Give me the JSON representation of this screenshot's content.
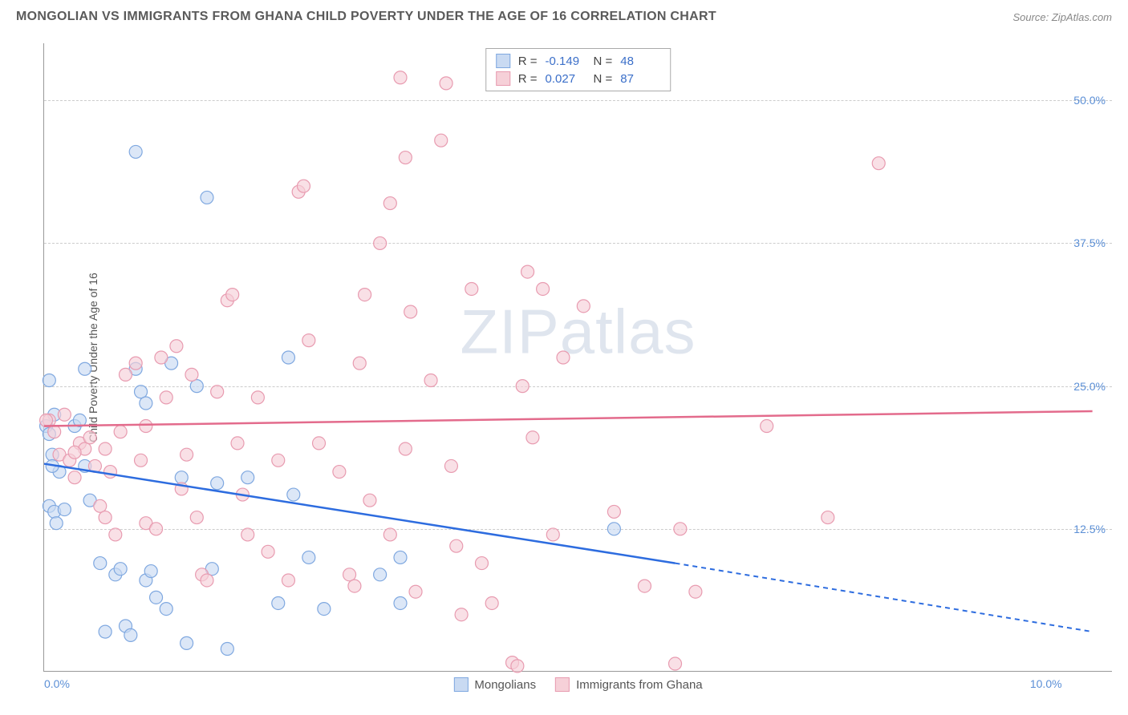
{
  "header": {
    "title": "MONGOLIAN VS IMMIGRANTS FROM GHANA CHILD POVERTY UNDER THE AGE OF 16 CORRELATION CHART",
    "source": "Source: ZipAtlas.com"
  },
  "chart": {
    "type": "scatter",
    "ylabel": "Child Poverty Under the Age of 16",
    "xlim": [
      0,
      10.5
    ],
    "ylim": [
      0,
      55
    ],
    "xticks": [
      {
        "v": 0,
        "l": "0.0%"
      },
      {
        "v": 10,
        "l": "10.0%"
      }
    ],
    "yticks": [
      {
        "v": 12.5,
        "l": "12.5%"
      },
      {
        "v": 25,
        "l": "25.0%"
      },
      {
        "v": 37.5,
        "l": "37.5%"
      },
      {
        "v": 50,
        "l": "50.0%"
      }
    ],
    "grid_color": "#cccccc",
    "axis_color": "#999999",
    "background_color": "#ffffff",
    "watermark": "ZIPatlas",
    "series": [
      {
        "name": "Mongolians",
        "color_fill": "#c9daf2",
        "color_stroke": "#7fa8e0",
        "line_color": "#2d6cdf",
        "marker_radius": 8,
        "marker_opacity": 0.65,
        "stats": {
          "R": "-0.149",
          "N": "48"
        },
        "trend": {
          "x1": 0,
          "y1": 18.2,
          "x2": 6.2,
          "y2": 9.5,
          "x2_dash": 10.3,
          "y2_dash": 3.5
        },
        "points": [
          [
            0.02,
            21.5
          ],
          [
            0.05,
            20.8
          ],
          [
            0.1,
            22.5
          ],
          [
            0.08,
            19.0
          ],
          [
            0.15,
            17.5
          ],
          [
            0.05,
            14.5
          ],
          [
            0.1,
            14.0
          ],
          [
            0.2,
            14.2
          ],
          [
            0.12,
            13.0
          ],
          [
            0.05,
            25.5
          ],
          [
            0.3,
            21.5
          ],
          [
            0.35,
            22.0
          ],
          [
            0.4,
            18.0
          ],
          [
            0.4,
            26.5
          ],
          [
            0.45,
            15.0
          ],
          [
            0.55,
            9.5
          ],
          [
            0.6,
            3.5
          ],
          [
            0.7,
            8.5
          ],
          [
            0.75,
            9.0
          ],
          [
            0.8,
            4.0
          ],
          [
            0.85,
            3.2
          ],
          [
            0.9,
            26.5
          ],
          [
            0.95,
            24.5
          ],
          [
            1.0,
            23.5
          ],
          [
            1.0,
            8.0
          ],
          [
            1.05,
            8.8
          ],
          [
            1.1,
            6.5
          ],
          [
            1.2,
            5.5
          ],
          [
            1.25,
            27.0
          ],
          [
            1.35,
            17.0
          ],
          [
            1.4,
            2.5
          ],
          [
            1.5,
            25.0
          ],
          [
            1.6,
            41.5
          ],
          [
            1.65,
            9.0
          ],
          [
            1.7,
            16.5
          ],
          [
            1.8,
            2.0
          ],
          [
            2.0,
            17.0
          ],
          [
            2.3,
            6.0
          ],
          [
            2.4,
            27.5
          ],
          [
            2.45,
            15.5
          ],
          [
            2.6,
            10.0
          ],
          [
            2.75,
            5.5
          ],
          [
            3.3,
            8.5
          ],
          [
            3.5,
            10.0
          ],
          [
            3.5,
            6.0
          ],
          [
            5.6,
            12.5
          ],
          [
            0.9,
            45.5
          ],
          [
            0.08,
            18.0
          ]
        ]
      },
      {
        "name": "Immigrants from Ghana",
        "color_fill": "#f6d0d8",
        "color_stroke": "#e89bb0",
        "line_color": "#e36b8c",
        "marker_radius": 8,
        "marker_opacity": 0.65,
        "stats": {
          "R": "0.027",
          "N": "87"
        },
        "trend": {
          "x1": 0,
          "y1": 21.5,
          "x2": 10.3,
          "y2": 22.8
        },
        "points": [
          [
            0.05,
            22.0
          ],
          [
            0.1,
            21.0
          ],
          [
            0.15,
            19.0
          ],
          [
            0.2,
            22.5
          ],
          [
            0.25,
            18.5
          ],
          [
            0.3,
            17.0
          ],
          [
            0.35,
            20.0
          ],
          [
            0.4,
            19.5
          ],
          [
            0.5,
            18.0
          ],
          [
            0.55,
            14.5
          ],
          [
            0.6,
            13.5
          ],
          [
            0.65,
            17.5
          ],
          [
            0.7,
            12.0
          ],
          [
            0.75,
            21.0
          ],
          [
            0.8,
            26.0
          ],
          [
            0.9,
            27.0
          ],
          [
            0.95,
            18.5
          ],
          [
            1.0,
            13.0
          ],
          [
            1.1,
            12.5
          ],
          [
            1.15,
            27.5
          ],
          [
            1.2,
            24.0
          ],
          [
            1.3,
            28.5
          ],
          [
            1.35,
            16.0
          ],
          [
            1.4,
            19.0
          ],
          [
            1.5,
            13.5
          ],
          [
            1.55,
            8.5
          ],
          [
            1.6,
            8.0
          ],
          [
            1.7,
            24.5
          ],
          [
            1.8,
            32.5
          ],
          [
            1.85,
            33.0
          ],
          [
            1.9,
            20.0
          ],
          [
            1.95,
            15.5
          ],
          [
            2.0,
            12.0
          ],
          [
            2.1,
            24.0
          ],
          [
            2.2,
            10.5
          ],
          [
            2.3,
            18.5
          ],
          [
            2.4,
            8.0
          ],
          [
            2.5,
            42.0
          ],
          [
            2.55,
            42.5
          ],
          [
            2.7,
            20.0
          ],
          [
            2.9,
            17.5
          ],
          [
            3.0,
            8.5
          ],
          [
            3.05,
            7.5
          ],
          [
            3.1,
            27.0
          ],
          [
            3.15,
            33.0
          ],
          [
            3.2,
            15.0
          ],
          [
            3.3,
            37.5
          ],
          [
            3.4,
            41.0
          ],
          [
            3.5,
            52.0
          ],
          [
            3.55,
            19.5
          ],
          [
            3.55,
            45.0
          ],
          [
            3.6,
            31.5
          ],
          [
            3.65,
            7.0
          ],
          [
            3.8,
            25.5
          ],
          [
            3.9,
            46.5
          ],
          [
            3.95,
            51.5
          ],
          [
            4.05,
            11.0
          ],
          [
            4.1,
            5.0
          ],
          [
            4.2,
            33.5
          ],
          [
            4.3,
            9.5
          ],
          [
            4.6,
            0.8
          ],
          [
            4.65,
            0.5
          ],
          [
            4.7,
            25.0
          ],
          [
            4.75,
            35.0
          ],
          [
            4.8,
            20.5
          ],
          [
            4.9,
            33.5
          ],
          [
            5.0,
            12.0
          ],
          [
            5.1,
            27.5
          ],
          [
            5.3,
            32.0
          ],
          [
            5.6,
            14.0
          ],
          [
            5.9,
            7.5
          ],
          [
            6.2,
            0.7
          ],
          [
            6.25,
            12.5
          ],
          [
            6.4,
            7.0
          ],
          [
            7.1,
            21.5
          ],
          [
            7.7,
            13.5
          ],
          [
            8.2,
            44.5
          ],
          [
            4.4,
            6.0
          ],
          [
            2.6,
            29.0
          ],
          [
            1.0,
            21.5
          ],
          [
            0.3,
            19.2
          ],
          [
            0.45,
            20.5
          ],
          [
            0.02,
            22.0
          ],
          [
            1.45,
            26.0
          ],
          [
            0.6,
            19.5
          ],
          [
            4.0,
            18.0
          ],
          [
            3.4,
            12.0
          ]
        ]
      }
    ],
    "legend": {
      "items": [
        {
          "label": "Mongolians",
          "fill": "#c9daf2",
          "stroke": "#7fa8e0"
        },
        {
          "label": "Immigrants from Ghana",
          "fill": "#f6d0d8",
          "stroke": "#e89bb0"
        }
      ]
    }
  }
}
